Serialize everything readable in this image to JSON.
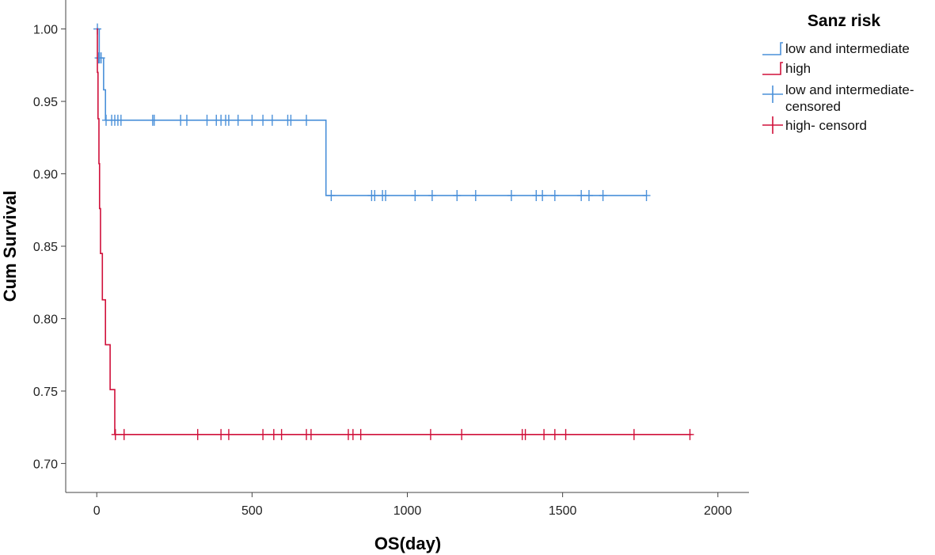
{
  "chart_data": {
    "type": "line",
    "subtype": "kaplan-meier-step",
    "xlabel": "OS(day)",
    "ylabel": "Cum Survival",
    "xlim": [
      -100,
      2100
    ],
    "ylim": [
      0.68,
      1.02
    ],
    "xticks": [
      0,
      500,
      1000,
      1500,
      2000
    ],
    "yticks": [
      0.7,
      0.75,
      0.8,
      0.85,
      0.9,
      0.95,
      1.0
    ],
    "xtick_labels": [
      "0",
      "500",
      "1000",
      "1500",
      "2000"
    ],
    "ytick_labels": [
      "0.70",
      "0.75",
      "0.80",
      "0.85",
      "0.90",
      "0.95",
      "1.00"
    ],
    "grid": false,
    "legend": {
      "title": "Sanz risk",
      "position": "top-right",
      "entries": [
        {
          "label": "low and intermediate",
          "kind": "step",
          "color": "#4a90d9"
        },
        {
          "label": "high",
          "kind": "step",
          "color": "#d0103a"
        },
        {
          "label_lines": [
            "low and intermediate-",
            "censored"
          ],
          "kind": "censor",
          "color": "#4a90d9"
        },
        {
          "label": "high- censord",
          "kind": "censor",
          "color": "#d0103a"
        }
      ]
    },
    "series": [
      {
        "name": "low and intermediate",
        "color": "#4a90d9",
        "steps": [
          [
            0,
            1.0
          ],
          [
            8,
            0.98
          ],
          [
            22,
            0.958
          ],
          [
            28,
            0.937
          ],
          [
            738,
            0.937
          ],
          [
            738,
            0.885
          ],
          [
            1770,
            0.885
          ]
        ],
        "censored": [
          [
            2,
            1.0
          ],
          [
            6,
            0.98
          ],
          [
            9,
            0.98
          ],
          [
            14,
            0.98
          ],
          [
            30,
            0.937
          ],
          [
            48,
            0.937
          ],
          [
            58,
            0.937
          ],
          [
            68,
            0.937
          ],
          [
            78,
            0.937
          ],
          [
            180,
            0.937
          ],
          [
            185,
            0.937
          ],
          [
            270,
            0.937
          ],
          [
            290,
            0.937
          ],
          [
            355,
            0.937
          ],
          [
            385,
            0.937
          ],
          [
            400,
            0.937
          ],
          [
            415,
            0.937
          ],
          [
            425,
            0.937
          ],
          [
            455,
            0.937
          ],
          [
            500,
            0.937
          ],
          [
            535,
            0.937
          ],
          [
            565,
            0.937
          ],
          [
            615,
            0.937
          ],
          [
            625,
            0.937
          ],
          [
            675,
            0.937
          ],
          [
            755,
            0.885
          ],
          [
            885,
            0.885
          ],
          [
            895,
            0.885
          ],
          [
            920,
            0.885
          ],
          [
            930,
            0.885
          ],
          [
            1025,
            0.885
          ],
          [
            1080,
            0.885
          ],
          [
            1160,
            0.885
          ],
          [
            1220,
            0.885
          ],
          [
            1335,
            0.885
          ],
          [
            1415,
            0.885
          ],
          [
            1435,
            0.885
          ],
          [
            1475,
            0.885
          ],
          [
            1560,
            0.885
          ],
          [
            1585,
            0.885
          ],
          [
            1630,
            0.885
          ],
          [
            1770,
            0.885
          ]
        ]
      },
      {
        "name": "high",
        "color": "#d0103a",
        "steps": [
          [
            0,
            1.0
          ],
          [
            2,
            0.97
          ],
          [
            4,
            0.938
          ],
          [
            7,
            0.907
          ],
          [
            9,
            0.876
          ],
          [
            12,
            0.845
          ],
          [
            18,
            0.813
          ],
          [
            28,
            0.782
          ],
          [
            43,
            0.751
          ],
          [
            58,
            0.72
          ],
          [
            1915,
            0.72
          ]
        ],
        "censored": [
          [
            60,
            0.72
          ],
          [
            88,
            0.72
          ],
          [
            325,
            0.72
          ],
          [
            400,
            0.72
          ],
          [
            425,
            0.72
          ],
          [
            535,
            0.72
          ],
          [
            570,
            0.72
          ],
          [
            595,
            0.72
          ],
          [
            675,
            0.72
          ],
          [
            690,
            0.72
          ],
          [
            810,
            0.72
          ],
          [
            825,
            0.72
          ],
          [
            850,
            0.72
          ],
          [
            1075,
            0.72
          ],
          [
            1175,
            0.72
          ],
          [
            1370,
            0.72
          ],
          [
            1380,
            0.72
          ],
          [
            1440,
            0.72
          ],
          [
            1475,
            0.72
          ],
          [
            1510,
            0.72
          ],
          [
            1730,
            0.72
          ],
          [
            1910,
            0.72
          ]
        ]
      }
    ]
  }
}
